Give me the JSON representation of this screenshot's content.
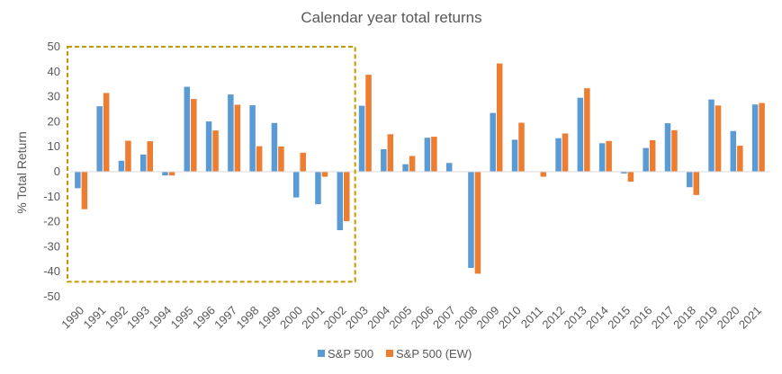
{
  "chart_data": {
    "type": "bar",
    "title": "Calendar year total returns",
    "ylabel": "% Total Return",
    "xlabel": "",
    "ylim": [
      -50,
      50
    ],
    "yticks": [
      50,
      40,
      30,
      20,
      10,
      0,
      -10,
      -20,
      -30,
      -40,
      -50
    ],
    "grid": false,
    "legend_position": "bottom",
    "categories": [
      "1990",
      "1991",
      "1992",
      "1993",
      "1994",
      "1995",
      "1996",
      "1997",
      "1998",
      "1999",
      "2000",
      "2001",
      "2002",
      "2003",
      "2004",
      "2005",
      "2006",
      "2007",
      "2008",
      "2009",
      "2010",
      "2011",
      "2012",
      "2013",
      "2014",
      "2015",
      "2016",
      "2017",
      "2018",
      "2019",
      "2020",
      "2021"
    ],
    "series": [
      {
        "name": "S&P 500",
        "color": "#5B9BD5",
        "values": [
          -6.6,
          26.2,
          4.4,
          6.9,
          -1.5,
          34.0,
          20.1,
          30.9,
          26.6,
          19.5,
          -10.3,
          -13.0,
          -23.4,
          26.4,
          9.0,
          3.0,
          13.6,
          3.5,
          -38.5,
          23.5,
          12.8,
          0.0,
          13.4,
          29.6,
          11.4,
          -0.7,
          9.5,
          19.4,
          -6.2,
          28.9,
          16.3,
          26.9
        ]
      },
      {
        "name": "S&P 500 (EW)",
        "color": "#ED7D31",
        "values": [
          -15.0,
          31.5,
          12.4,
          12.2,
          -1.5,
          29.1,
          16.5,
          26.8,
          10.2,
          10.1,
          7.6,
          -2.0,
          -19.8,
          38.8,
          15.0,
          6.3,
          14.0,
          0.0,
          -40.8,
          43.3,
          19.6,
          -2.0,
          15.3,
          33.4,
          12.3,
          -4.0,
          12.6,
          16.6,
          -9.3,
          26.5,
          10.4,
          27.5
        ]
      }
    ],
    "highlight_box": {
      "from": "1990",
      "to": "2002",
      "ymin": -44,
      "ymax": 50,
      "color": "#C09A00"
    }
  }
}
